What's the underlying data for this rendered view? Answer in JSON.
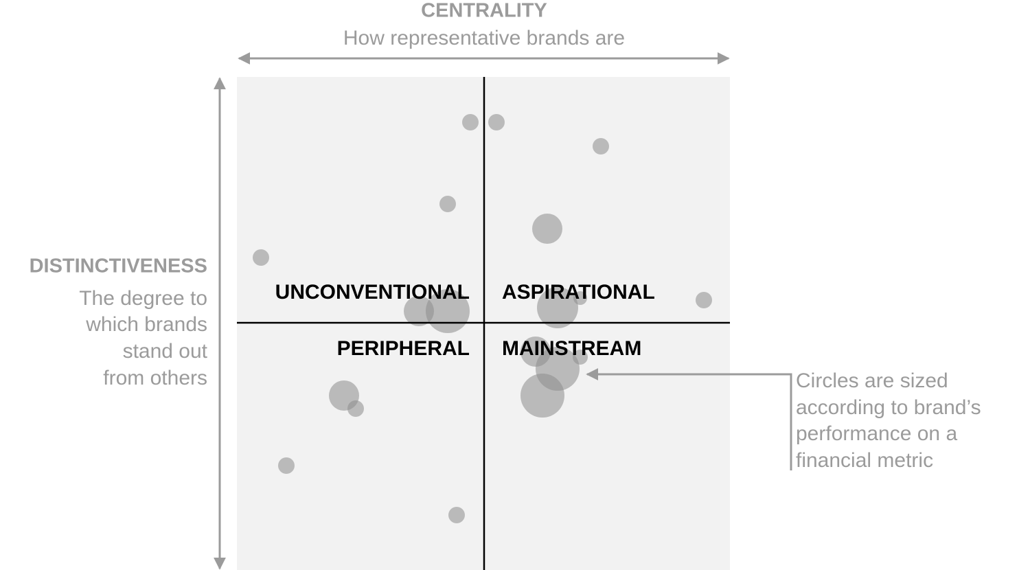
{
  "top_axis": {
    "title": "CENTRALITY",
    "subtitle": "How representative brands are"
  },
  "left_axis": {
    "title": "DISTINCTIVENESS",
    "lines": [
      "The degree to",
      "which brands",
      "stand out",
      "from others"
    ]
  },
  "quadrants": {
    "top_left": "UNCONVENTIONAL",
    "top_right": "ASPIRATIONAL",
    "bottom_left": "PERIPHERAL",
    "bottom_right": "MAINSTREAM"
  },
  "note": {
    "lines": [
      "Circles are sized",
      "according to brand’s",
      "performance on a",
      "financial metric"
    ]
  }
}
